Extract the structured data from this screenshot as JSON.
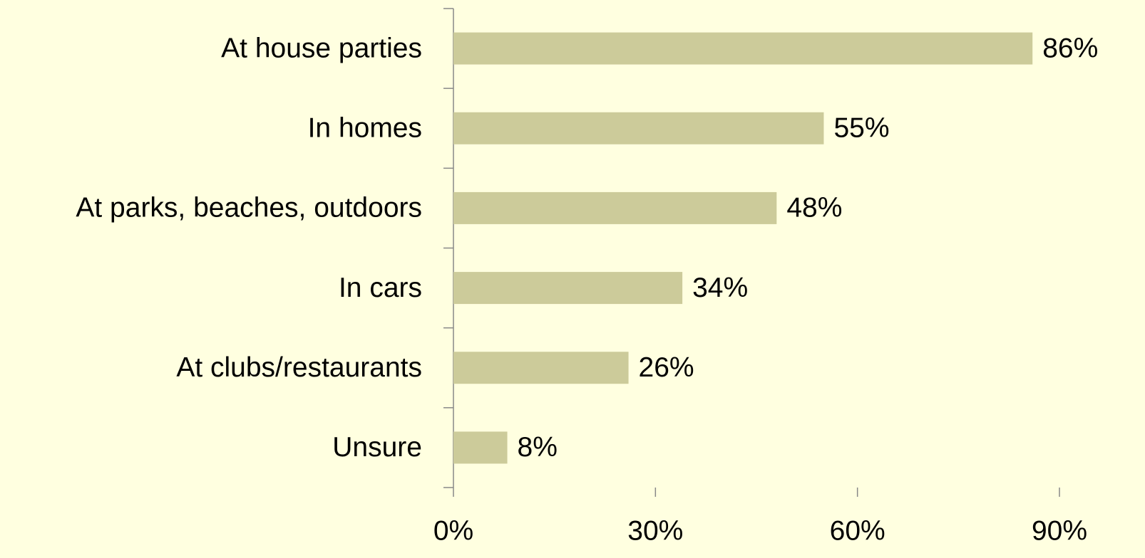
{
  "chart_data": {
    "type": "bar",
    "orientation": "horizontal",
    "categories": [
      "At house parties",
      "In homes",
      "At parks, beaches, outdoors",
      "In cars",
      "At clubs/restaurants",
      "Unsure"
    ],
    "values": [
      86,
      55,
      48,
      34,
      26,
      8
    ],
    "value_labels": [
      "86%",
      "55%",
      "48%",
      "34%",
      "26%",
      "8%"
    ],
    "color": "#cccb9a",
    "xlim": [
      0,
      90
    ],
    "xticks": [
      {
        "value": 0,
        "label": "0%"
      },
      {
        "value": 30,
        "label": "30%"
      },
      {
        "value": 60,
        "label": "60%"
      },
      {
        "value": 90,
        "label": "90%"
      }
    ],
    "grid": false
  }
}
